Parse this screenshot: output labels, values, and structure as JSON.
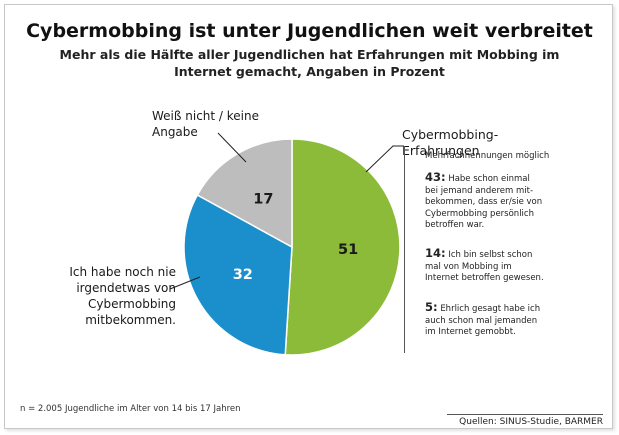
{
  "chart_data": {
    "type": "pie",
    "title": "Cybermobbing ist unter Jugendlichen weit verbreitet",
    "subtitle": "Mehr als die Hälfte aller Jugendlichen hat Erfahrungen mit Mobbing im Internet gemacht, Angaben in Prozent",
    "slices": [
      {
        "label": "Cybermobbing-Erfahrungen",
        "value": 51,
        "color": "#8cbb39"
      },
      {
        "label": "Ich habe noch nie irgendetwas von Cybermobbing mitbekommen.",
        "value": 32,
        "color": "#1b8fcb"
      },
      {
        "label": "Weiß nicht / keine Angabe",
        "value": 17,
        "color": "#bdbdbd"
      }
    ],
    "details_note": "Mehrfachnennungen möglich",
    "details": [
      {
        "value": "43:",
        "text": "Habe schon einmal bei jemand anderem mit-bekommen, dass er/sie von Cybermobbing persönlich betroffen war."
      },
      {
        "value": "14:",
        "text": "Ich bin selbst schon mal von Mobbing im Internet betroffen gewesen."
      },
      {
        "value": "5:",
        "text": "Ehrlich gesagt habe ich auch schon mal jemanden im Internet gemobbt."
      }
    ],
    "footnote": "n = 2.005 Jugendliche im Alter von 14 bis 17 Jahren",
    "source": "Quellen: SINUS-Studie, BARMER"
  }
}
